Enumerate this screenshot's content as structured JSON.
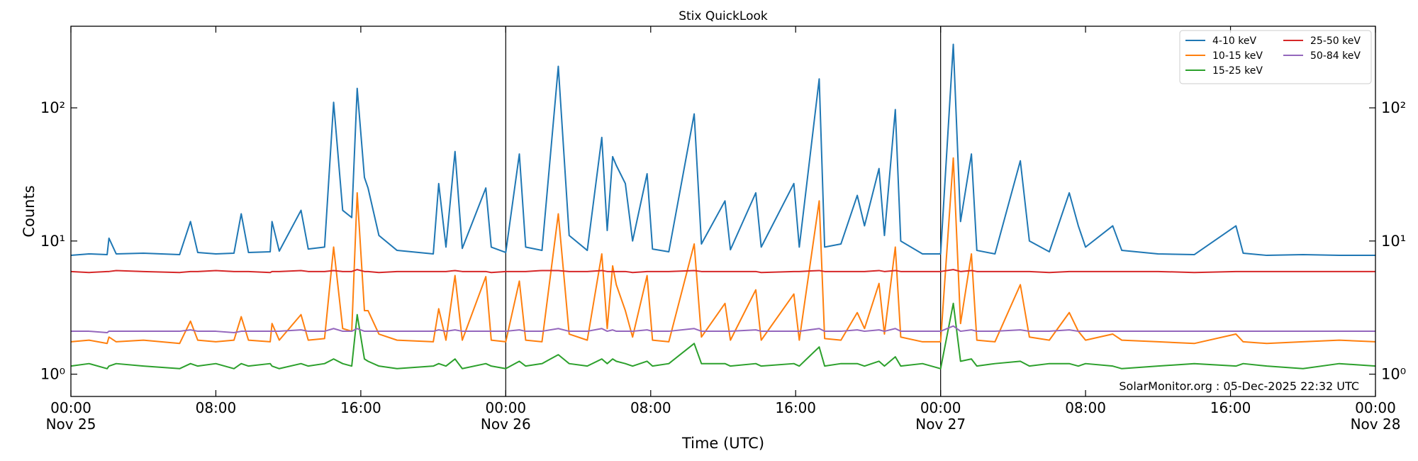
{
  "chart_data": {
    "type": "line",
    "title": "Stix QuickLook",
    "x_label": "Time (UTC)",
    "y_label": "Counts",
    "annotation": "SolarMonitor.org : 05-Dec-2025 22:32 UTC",
    "log_y": true,
    "day_lines": true,
    "legend_position": "upper-right",
    "legend_columns": 2,
    "xlim": [
      "Nov 25 00:00",
      "Nov 28 00:00"
    ],
    "xticks": [
      {
        "value": "Nov 25 00:00",
        "label": "00:00\nNov 25"
      },
      {
        "value": "Nov 25 08:00",
        "label": "08:00"
      },
      {
        "value": "Nov 25 16:00",
        "label": "16:00"
      },
      {
        "value": "Nov 26 00:00",
        "label": "00:00\nNov 26"
      },
      {
        "value": "Nov 26 08:00",
        "label": "08:00"
      },
      {
        "value": "Nov 26 16:00",
        "label": "16:00"
      },
      {
        "value": "Nov 27 00:00",
        "label": "00:00\nNov 27"
      },
      {
        "value": "Nov 27 08:00",
        "label": "08:00"
      },
      {
        "value": "Nov 27 16:00",
        "label": "16:00"
      },
      {
        "value": "Nov 28 00:00",
        "label": "00:00\nNov 28"
      }
    ],
    "ylim": [
      0.68,
      410
    ],
    "yticks": [
      {
        "value": 1,
        "label": "10⁰"
      },
      {
        "value": 10,
        "label": "10¹"
      },
      {
        "value": 100,
        "label": "10²"
      }
    ],
    "x": [
      "Nov 25 00:00",
      "Nov 25 01:00",
      "Nov 25 02:00",
      "Nov 25 02:06",
      "Nov 25 02:30",
      "Nov 25 04:00",
      "Nov 25 06:00",
      "Nov 25 06:36",
      "Nov 25 07:00",
      "Nov 25 08:00",
      "Nov 25 09:00",
      "Nov 25 09:24",
      "Nov 25 09:48",
      "Nov 25 11:00",
      "Nov 25 11:06",
      "Nov 25 11:30",
      "Nov 25 12:42",
      "Nov 25 13:06",
      "Nov 25 14:00",
      "Nov 25 14:30",
      "Nov 25 15:00",
      "Nov 25 15:30",
      "Nov 25 15:48",
      "Nov 25 16:12",
      "Nov 25 16:24",
      "Nov 25 17:00",
      "Nov 25 18:00",
      "Nov 25 20:00",
      "Nov 25 20:18",
      "Nov 25 20:42",
      "Nov 25 21:12",
      "Nov 25 21:36",
      "Nov 25 22:54",
      "Nov 25 23:12",
      "Nov 26 00:00",
      "Nov 26 00:45",
      "Nov 26 01:06",
      "Nov 26 02:00",
      "Nov 26 02:54",
      "Nov 26 03:30",
      "Nov 26 04:30",
      "Nov 26 05:18",
      "Nov 26 05:36",
      "Nov 26 05:54",
      "Nov 26 06:06",
      "Nov 26 06:36",
      "Nov 26 07:00",
      "Nov 26 07:48",
      "Nov 26 08:06",
      "Nov 26 09:00",
      "Nov 26 10:24",
      "Nov 26 10:48",
      "Nov 26 12:06",
      "Nov 26 12:24",
      "Nov 26 13:48",
      "Nov 26 14:06",
      "Nov 26 15:54",
      "Nov 26 16:12",
      "Nov 26 17:18",
      "Nov 26 17:36",
      "Nov 26 18:30",
      "Nov 26 19:24",
      "Nov 26 19:48",
      "Nov 26 20:36",
      "Nov 26 20:54",
      "Nov 26 21:30",
      "Nov 26 21:48",
      "Nov 26 23:00",
      "Nov 27 00:00",
      "Nov 27 00:42",
      "Nov 27 01:06",
      "Nov 27 01:42",
      "Nov 27 02:00",
      "Nov 27 03:00",
      "Nov 27 04:24",
      "Nov 27 04:54",
      "Nov 27 06:00",
      "Nov 27 07:06",
      "Nov 27 07:36",
      "Nov 27 08:00",
      "Nov 27 09:30",
      "Nov 27 10:00",
      "Nov 27 12:00",
      "Nov 27 14:00",
      "Nov 27 16:18",
      "Nov 27 16:42",
      "Nov 27 18:00",
      "Nov 27 20:00",
      "Nov 27 22:00",
      "Nov 28 00:00"
    ],
    "series": [
      {
        "name": "4-10 keV",
        "color": "#1f77b4",
        "values": [
          7.8,
          8.0,
          7.9,
          10.5,
          8.0,
          8.1,
          7.9,
          14,
          8.2,
          8.0,
          8.1,
          16,
          8.2,
          8.3,
          14,
          8.4,
          17,
          8.7,
          9.0,
          110,
          17,
          15,
          140,
          30,
          25,
          11,
          8.5,
          8.0,
          27,
          9,
          47,
          8.8,
          25,
          9,
          8.2,
          45,
          9,
          8.5,
          205,
          11,
          8.5,
          60,
          12,
          43,
          37,
          27,
          10,
          32,
          8.7,
          8.3,
          90,
          9.5,
          20,
          8.6,
          23,
          9,
          27,
          9,
          165,
          9,
          9.5,
          22,
          13,
          35,
          11,
          97,
          10,
          8.0,
          8.0,
          300,
          14,
          45,
          8.5,
          8.0,
          40,
          10,
          8.3,
          23,
          13,
          9,
          13,
          8.5,
          8.0,
          7.9,
          13,
          8.1,
          7.8,
          7.9,
          7.8,
          7.8
        ]
      },
      {
        "name": "10-15 keV",
        "color": "#ff7f0e",
        "values": [
          1.75,
          1.8,
          1.7,
          1.9,
          1.75,
          1.8,
          1.7,
          2.5,
          1.8,
          1.75,
          1.8,
          2.7,
          1.8,
          1.75,
          2.4,
          1.8,
          2.8,
          1.8,
          1.85,
          9.0,
          2.2,
          2.1,
          23,
          3.0,
          3.0,
          2.0,
          1.8,
          1.75,
          3.1,
          1.8,
          5.5,
          1.8,
          5.4,
          1.8,
          1.75,
          5.0,
          1.8,
          1.75,
          16,
          2.0,
          1.8,
          8.0,
          2.2,
          6.5,
          4.7,
          3.0,
          1.9,
          5.5,
          1.8,
          1.75,
          9.5,
          1.9,
          3.4,
          1.8,
          4.3,
          1.8,
          4.0,
          1.8,
          20,
          1.85,
          1.8,
          2.9,
          2.2,
          4.8,
          2.0,
          9.0,
          1.9,
          1.75,
          1.75,
          42,
          2.4,
          8.0,
          1.8,
          1.75,
          4.7,
          1.9,
          1.8,
          2.9,
          2.1,
          1.8,
          2.0,
          1.8,
          1.75,
          1.7,
          2.0,
          1.75,
          1.7,
          1.75,
          1.8,
          1.75
        ]
      },
      {
        "name": "15-25 keV",
        "color": "#2ca02c",
        "values": [
          1.15,
          1.2,
          1.1,
          1.15,
          1.2,
          1.15,
          1.1,
          1.2,
          1.15,
          1.2,
          1.1,
          1.2,
          1.15,
          1.2,
          1.15,
          1.1,
          1.2,
          1.15,
          1.2,
          1.3,
          1.2,
          1.15,
          2.8,
          1.3,
          1.25,
          1.15,
          1.1,
          1.15,
          1.2,
          1.15,
          1.3,
          1.1,
          1.2,
          1.15,
          1.1,
          1.25,
          1.15,
          1.2,
          1.4,
          1.2,
          1.15,
          1.3,
          1.2,
          1.3,
          1.25,
          1.2,
          1.15,
          1.25,
          1.15,
          1.2,
          1.7,
          1.2,
          1.2,
          1.15,
          1.2,
          1.15,
          1.2,
          1.15,
          1.6,
          1.15,
          1.2,
          1.2,
          1.15,
          1.25,
          1.15,
          1.35,
          1.15,
          1.2,
          1.1,
          3.4,
          1.25,
          1.3,
          1.15,
          1.2,
          1.25,
          1.15,
          1.2,
          1.2,
          1.15,
          1.2,
          1.15,
          1.1,
          1.15,
          1.2,
          1.15,
          1.2,
          1.15,
          1.1,
          1.2,
          1.15
        ]
      },
      {
        "name": "25-50 keV",
        "color": "#d62728",
        "values": [
          5.9,
          5.8,
          5.9,
          5.9,
          6.0,
          5.9,
          5.8,
          5.9,
          5.9,
          6.0,
          5.9,
          5.9,
          5.9,
          5.8,
          5.9,
          5.9,
          6.0,
          5.9,
          5.9,
          6.0,
          5.9,
          5.9,
          6.1,
          5.9,
          5.9,
          5.8,
          5.9,
          5.9,
          5.9,
          5.9,
          6.0,
          5.9,
          5.9,
          5.8,
          5.9,
          5.9,
          5.9,
          6.0,
          6.0,
          5.9,
          5.9,
          6.0,
          5.9,
          5.9,
          5.9,
          5.9,
          5.8,
          5.9,
          5.9,
          5.9,
          6.0,
          5.9,
          5.9,
          5.9,
          5.9,
          5.8,
          5.9,
          5.9,
          6.0,
          5.9,
          5.9,
          5.9,
          5.9,
          6.0,
          5.9,
          6.0,
          5.9,
          5.9,
          5.9,
          6.1,
          5.9,
          6.0,
          5.9,
          5.9,
          5.9,
          5.9,
          5.8,
          5.9,
          5.9,
          5.9,
          5.9,
          5.9,
          5.9,
          5.8,
          5.9,
          5.9,
          5.9,
          5.9,
          5.9,
          5.9
        ]
      },
      {
        "name": "50-84 keV",
        "color": "#9467bd",
        "values": [
          2.1,
          2.1,
          2.05,
          2.1,
          2.1,
          2.1,
          2.1,
          2.15,
          2.1,
          2.1,
          2.05,
          2.1,
          2.1,
          2.1,
          2.1,
          2.1,
          2.15,
          2.1,
          2.1,
          2.2,
          2.1,
          2.1,
          2.2,
          2.1,
          2.1,
          2.1,
          2.1,
          2.1,
          2.15,
          2.1,
          2.15,
          2.1,
          2.1,
          2.1,
          2.1,
          2.15,
          2.1,
          2.1,
          2.2,
          2.1,
          2.1,
          2.2,
          2.1,
          2.15,
          2.1,
          2.1,
          2.1,
          2.15,
          2.1,
          2.1,
          2.2,
          2.1,
          2.1,
          2.1,
          2.15,
          2.1,
          2.1,
          2.1,
          2.2,
          2.1,
          2.1,
          2.15,
          2.1,
          2.15,
          2.1,
          2.2,
          2.1,
          2.1,
          2.1,
          2.3,
          2.1,
          2.15,
          2.1,
          2.1,
          2.15,
          2.1,
          2.1,
          2.15,
          2.1,
          2.1,
          2.1,
          2.1,
          2.1,
          2.1,
          2.1,
          2.1,
          2.1,
          2.1,
          2.1,
          2.1
        ]
      }
    ]
  }
}
